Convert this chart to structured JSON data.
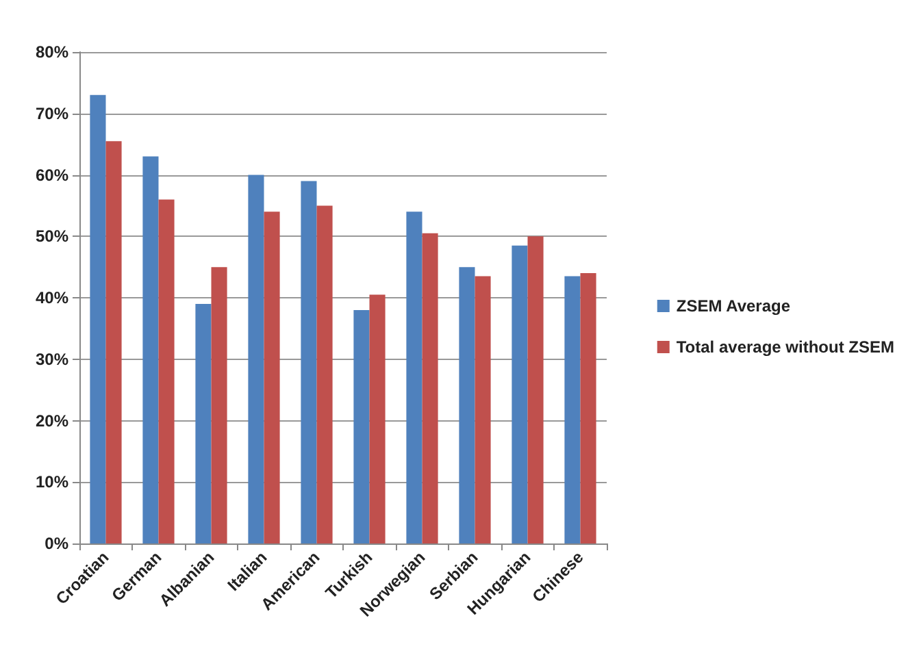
{
  "chart_data": {
    "type": "bar",
    "categories": [
      "Croatian",
      "German",
      "Albanian",
      "Italian",
      "American",
      "Turkish",
      "Norwegian",
      "Serbian",
      "Hungarian",
      "Chinese"
    ],
    "series": [
      {
        "name": "ZSEM Average",
        "color": "#4f81bd",
        "values": [
          73,
          63,
          39,
          60,
          59,
          38,
          54,
          45,
          48.5,
          43.5
        ]
      },
      {
        "name": "Total average without ZSEM",
        "color": "#c0504d",
        "values": [
          65.5,
          56,
          45,
          54,
          55,
          40.5,
          50.5,
          43.5,
          50,
          44
        ]
      }
    ],
    "ylim": [
      0,
      80
    ],
    "yticks": [
      {
        "value": 0,
        "label": "0%"
      },
      {
        "value": 10,
        "label": "10%"
      },
      {
        "value": 20,
        "label": "20%"
      },
      {
        "value": 30,
        "label": "30%"
      },
      {
        "value": 40,
        "label": "40%"
      },
      {
        "value": 50,
        "label": "50%"
      },
      {
        "value": 60,
        "label": "60%"
      },
      {
        "value": 70,
        "label": "70%"
      },
      {
        "value": 80,
        "label": "80%"
      }
    ],
    "grid": "y",
    "legend": "right"
  }
}
